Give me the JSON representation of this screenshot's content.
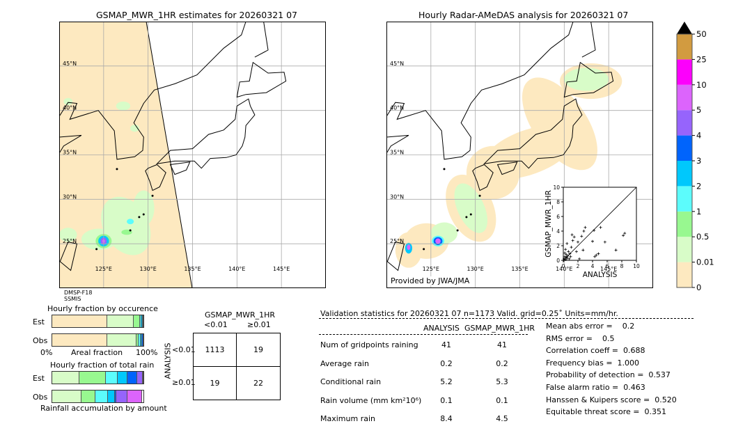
{
  "left_map": {
    "title": "GSMAP_MWR_1HR estimates for 20260321 07",
    "sat_label_1": "DMSP-F18",
    "sat_label_2": "SSMIS"
  },
  "right_map": {
    "title": "Hourly Radar-AMeDAS analysis for 20260321 07",
    "credit": "Provided by JWA/JMA"
  },
  "map_axes": {
    "lon_ticks": [
      "125°E",
      "130°E",
      "135°E",
      "140°E",
      "145°E"
    ],
    "lat_ticks": [
      "45°N",
      "40°N",
      "35°N",
      "30°N",
      "25°N"
    ],
    "lon_values": [
      125,
      130,
      135,
      140,
      145
    ],
    "lat_values": [
      45,
      40,
      35,
      30,
      25
    ],
    "lon_range": [
      120,
      150
    ],
    "lat_range": [
      20,
      50
    ]
  },
  "colorbar": {
    "ticks": [
      "0",
      "0.01",
      "0.5",
      "1",
      "2",
      "3",
      "4",
      "5",
      "10",
      "25",
      "50"
    ],
    "colors": [
      "#fde9c0",
      "#d8fcc8",
      "#98f890",
      "#5cfcfc",
      "#00c8fc",
      "#0064fc",
      "#9664fc",
      "#dc64fc",
      "#fc00fc",
      "#d29b40"
    ],
    "extend": "max"
  },
  "chart_data": [
    {
      "type": "scatter",
      "xlabel": "ANALYSIS",
      "ylabel": "GSMAP_MWR_1HR",
      "xlim": [
        0,
        10
      ],
      "ylim": [
        0,
        10
      ],
      "xticks": [
        "0",
        "2",
        "4",
        "6",
        "8",
        "10"
      ],
      "yticks": [
        "0",
        "2",
        "4",
        "6",
        "8",
        "10"
      ],
      "diagonal": true,
      "points": [
        [
          0.1,
          0.2
        ],
        [
          0.2,
          0.5
        ],
        [
          0.3,
          0.1
        ],
        [
          0.4,
          0.8
        ],
        [
          0.5,
          0.3
        ],
        [
          0.2,
          1.0
        ],
        [
          0.6,
          0.6
        ],
        [
          0.8,
          0.2
        ],
        [
          0.3,
          1.5
        ],
        [
          0.5,
          2.3
        ],
        [
          0.7,
          1.2
        ],
        [
          1.0,
          0.5
        ],
        [
          1.2,
          3.5
        ],
        [
          1.3,
          2.7
        ],
        [
          1.5,
          3.2
        ],
        [
          1.8,
          1.2
        ],
        [
          2.0,
          2.5
        ],
        [
          2.2,
          0.2
        ],
        [
          2.5,
          3.3
        ],
        [
          2.7,
          1.4
        ],
        [
          2.8,
          4.0
        ],
        [
          3.0,
          4.5
        ],
        [
          4.0,
          2.6
        ],
        [
          4.2,
          4.1
        ],
        [
          4.3,
          0.5
        ],
        [
          4.5,
          0.7
        ],
        [
          4.8,
          0.9
        ],
        [
          5.1,
          4.5
        ],
        [
          5.7,
          2.5
        ],
        [
          7.2,
          1.4
        ],
        [
          8.2,
          3.4
        ],
        [
          8.4,
          3.7
        ],
        [
          0.1,
          0.0
        ],
        [
          0.9,
          0.9
        ],
        [
          1.1,
          1.8
        ],
        [
          0.4,
          0.4
        ]
      ]
    },
    {
      "type": "bar",
      "title": "Hourly fraction by occurence",
      "xlabel": "Areal fraction",
      "xtick_left": "0%",
      "xtick_right": "100%",
      "categories": [
        "Est",
        "Obs"
      ],
      "series": [
        {
          "name": "0-0.01",
          "values": [
            60,
            60
          ]
        },
        {
          "name": "0.01-0.5",
          "values": [
            29,
            32
          ]
        },
        {
          "name": "0.5-1",
          "values": [
            7,
            3
          ]
        },
        {
          "name": "1-2",
          "values": [
            2,
            2
          ]
        },
        {
          "name": "2-3",
          "values": [
            1,
            1.5
          ]
        },
        {
          "name": "3-4",
          "values": [
            1,
            1.5
          ]
        }
      ]
    },
    {
      "type": "bar",
      "title": "Hourly fraction of total rain",
      "xlabel": "Rainfall accumulation by amount",
      "categories": [
        "Est",
        "Obs"
      ],
      "series": [
        {
          "name": "0.01-0.5",
          "values": [
            30,
            32
          ]
        },
        {
          "name": "0.5-1",
          "values": [
            29,
            15
          ]
        },
        {
          "name": "1-2",
          "values": [
            13,
            14
          ]
        },
        {
          "name": "2-3",
          "values": [
            11,
            8
          ]
        },
        {
          "name": "3-4",
          "values": [
            11,
            1.5
          ]
        },
        {
          "name": "4-5",
          "values": [
            6,
            12
          ]
        },
        {
          "name": "5-10",
          "values": [
            0,
            16
          ]
        }
      ]
    }
  ],
  "contingency": {
    "col_title": "GSMAP_MWR_1HR",
    "row_title": "ANALYSIS",
    "col_labels": [
      "<0.01",
      "≥0.01"
    ],
    "row_labels": [
      "<0.01",
      "≥0.01"
    ],
    "cells": [
      [
        "1113",
        "19"
      ],
      [
        "19",
        "22"
      ]
    ]
  },
  "stats": {
    "header": "Validation statistics for 20260321 07  n=1173 Valid. grid=0.25˚ Units=mm/hr.",
    "col1": "ANALYSIS",
    "col2": "GSMAP_MWR_1HR",
    "rows": [
      {
        "label": "Num of gridpoints raining",
        "a": "41",
        "b": "41"
      },
      {
        "label": "Average rain",
        "a": "0.2",
        "b": "0.2"
      },
      {
        "label": "Conditional rain",
        "a": "5.2",
        "b": "5.3"
      },
      {
        "label": "Rain volume (mm km²10⁶)",
        "a": "0.1",
        "b": "0.1"
      },
      {
        "label": "Maximum rain",
        "a": "8.4",
        "b": "4.5"
      }
    ],
    "scores": [
      "Mean abs error =    0.2",
      "RMS error =    0.5",
      "Correlation coeff =  0.688",
      "Frequency bias =  1.000",
      "Probability of detection =  0.537",
      "False alarm ratio =  0.463",
      "Hanssen & Kuipers score =  0.520",
      "Equitable threat score =  0.351"
    ]
  }
}
